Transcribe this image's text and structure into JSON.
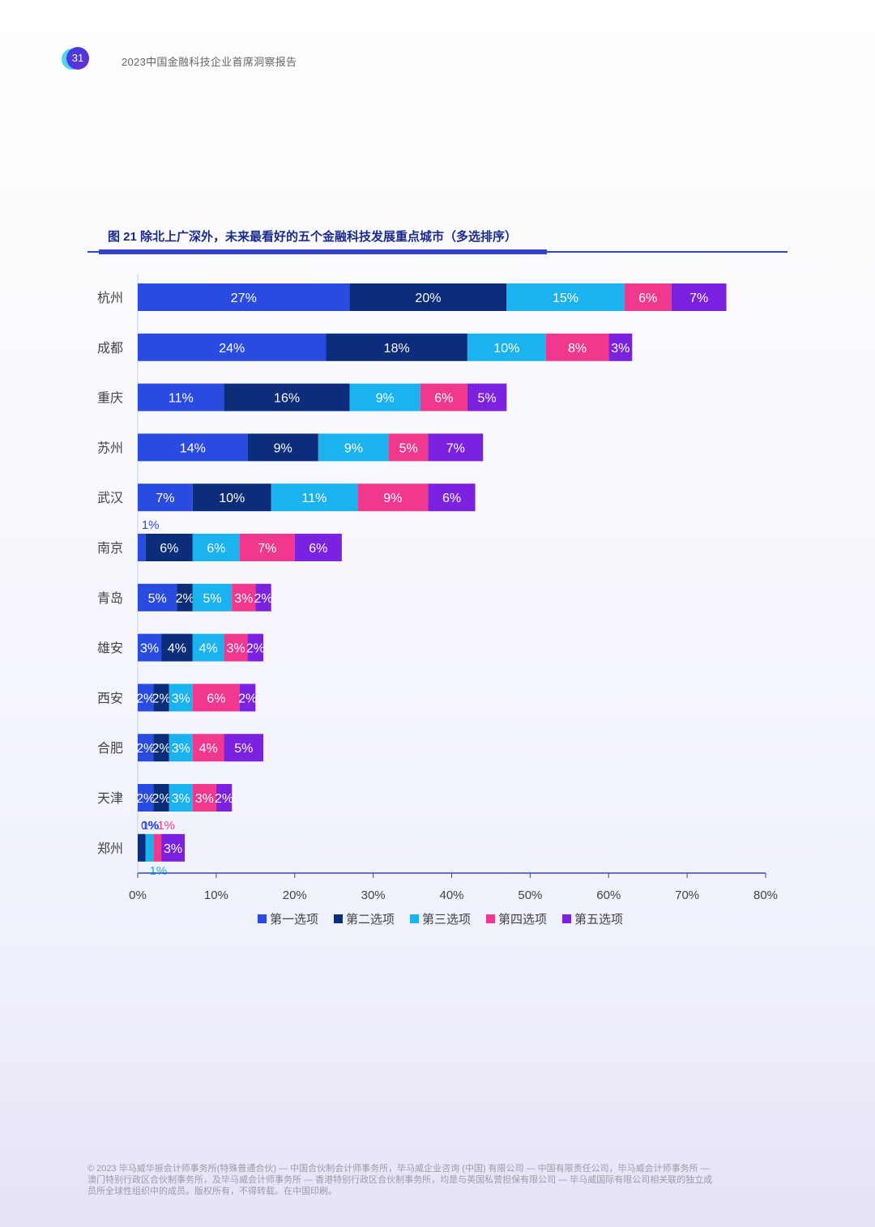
{
  "header": {
    "page_number": "31",
    "report_title": "2023中国金融科技企业首席洞察报告"
  },
  "figure": {
    "title": "图 21 除北上广深外，未来最看好的五个金融科技发展重点城市（多选排序）"
  },
  "chart_data": {
    "type": "bar",
    "orientation": "horizontal",
    "stacked": true,
    "title": "图 21 除北上广深外，未来最看好的五个金融科技发展重点城市（多选排序）",
    "categories": [
      "杭州",
      "成都",
      "重庆",
      "苏州",
      "武汉",
      "南京",
      "青岛",
      "雄安",
      "西安",
      "合肥",
      "天津",
      "郑州"
    ],
    "series": [
      {
        "name": "第一选项",
        "color": "#2a4be0",
        "values": [
          27,
          24,
          11,
          14,
          7,
          1,
          5,
          3,
          2,
          2,
          2,
          0
        ]
      },
      {
        "name": "第二选项",
        "color": "#0b2d7a",
        "values": [
          20,
          18,
          16,
          9,
          10,
          6,
          2,
          4,
          2,
          2,
          2,
          1
        ]
      },
      {
        "name": "第三选项",
        "color": "#1ab2ef",
        "values": [
          15,
          10,
          9,
          9,
          11,
          6,
          5,
          4,
          3,
          3,
          3,
          1
        ]
      },
      {
        "name": "第四选项",
        "color": "#f0388f",
        "values": [
          6,
          8,
          6,
          5,
          9,
          7,
          3,
          3,
          6,
          4,
          3,
          1
        ]
      },
      {
        "name": "第五选项",
        "color": "#7a22e0",
        "values": [
          7,
          3,
          5,
          7,
          6,
          6,
          2,
          2,
          2,
          5,
          2,
          3
        ]
      }
    ],
    "x_ticks": [
      "0%",
      "10%",
      "20%",
      "30%",
      "40%",
      "50%",
      "60%",
      "70%",
      "80%"
    ],
    "xlim": [
      0,
      80
    ],
    "value_suffix": "%",
    "legend_position": "bottom"
  },
  "footer": {
    "lines": [
      "© 2023 毕马威华振会计师事务所(特殊普通合伙) — 中国合伙制会计师事务所，毕马威企业咨询 (中国) 有限公司 — 中国有限责任公司，毕马威会计师事务所 —",
      "澳门特别行政区合伙制事务所，及毕马威会计师事务所 — 香港特别行政区合伙制事务所，均是与英国私营担保有限公司 — 毕马威国际有限公司相关联的独立成",
      "员所全球性组织中的成员。版权所有，不得转载。在中国印刷。"
    ]
  }
}
